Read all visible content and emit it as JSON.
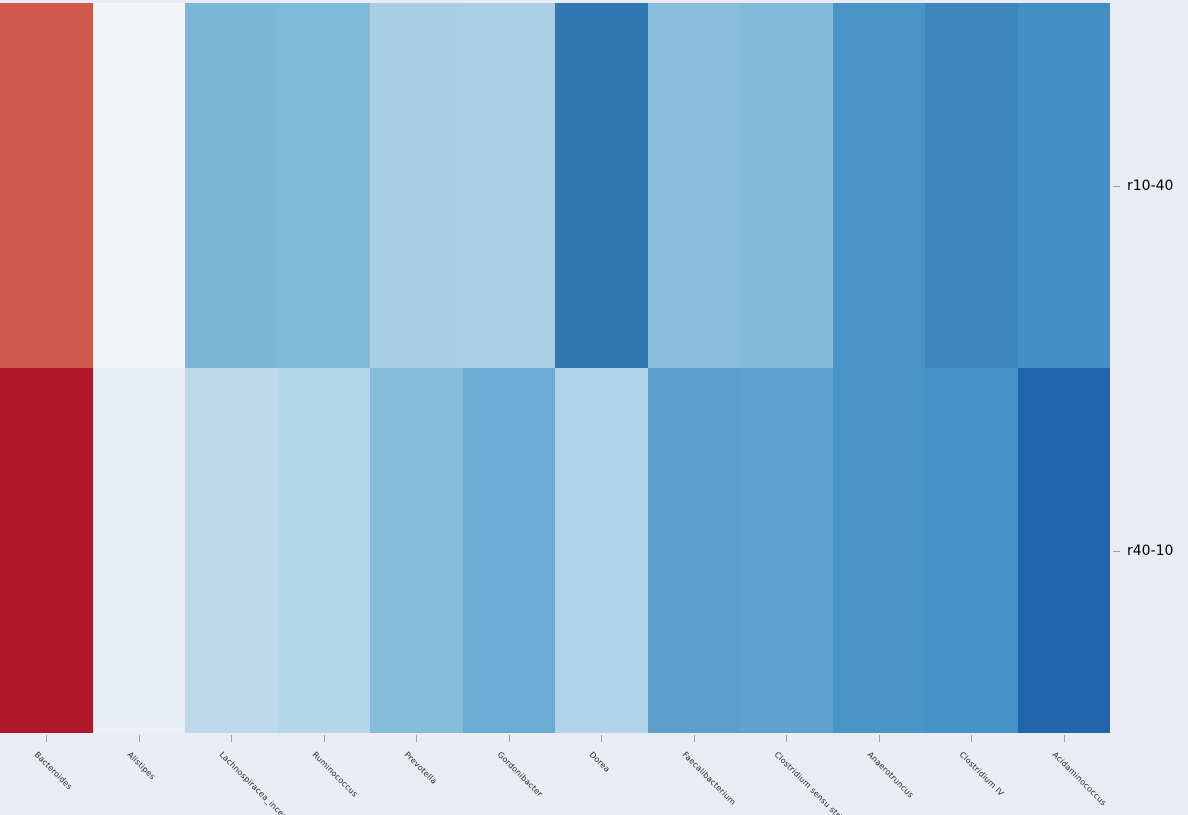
{
  "figure": {
    "background": "#e9edf3"
  },
  "chart_data": {
    "type": "heatmap",
    "title": "",
    "xlabel": "",
    "ylabel": "",
    "legend": "none",
    "grid": false,
    "colormap": "RdBu",
    "rows": [
      "r10-40",
      "r40-10"
    ],
    "columns": [
      "Bacteroides",
      "Alistipes",
      "Lachnospiracea_incertae_sedis",
      "Ruminococcus",
      "Prevotella",
      "Gordonibacter",
      "Dorea",
      "Faecalibacterium",
      "Clostridium sensu stricto",
      "Anaerotruncus",
      "Clostridium IV",
      "Acidaminococcus"
    ],
    "cell_colors": [
      [
        "#cf5a4b",
        "#f4f5f6",
        "#7db6d8",
        "#80b8da",
        "#a7cee3",
        "#abd0e5",
        "#3179b5",
        "#89bddc",
        "#83badb",
        "#4994c7",
        "#3c86be",
        "#428fc4"
      ],
      [
        "#b2182b",
        "#e9eff5",
        "#bed9ea",
        "#b5d5e8",
        "#85bcdc",
        "#6cacd4",
        "#b3d4e8",
        "#5ba0cc",
        "#5fa3ce",
        "#4a95c8",
        "#4592c6",
        "#2166ac"
      ]
    ]
  },
  "axes": {
    "x_tick_color": "#9aa0a6",
    "x_label_color": "#262626",
    "y_label_color": "#000000"
  }
}
